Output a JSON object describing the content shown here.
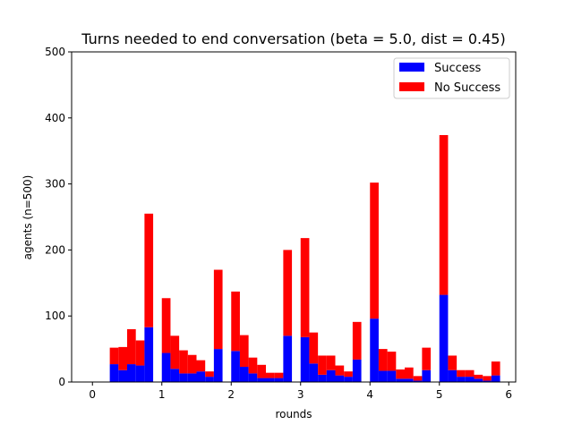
{
  "chart_data": {
    "type": "bar",
    "stacked": true,
    "title": "Turns needed to end conversation (beta = 5.0, dist = 0.45)",
    "xlabel": "rounds",
    "ylabel": "agents (n=500)",
    "xlim": [
      -0.3,
      6.1
    ],
    "ylim": [
      0,
      500
    ],
    "bin_width": 0.125,
    "xticks": [
      0,
      1,
      2,
      3,
      4,
      5,
      6
    ],
    "yticks": [
      0,
      100,
      200,
      300,
      400,
      500
    ],
    "legend_position": "top-right",
    "grid": false,
    "x": [
      0.25,
      0.375,
      0.5,
      0.625,
      0.75,
      1.0,
      1.125,
      1.25,
      1.375,
      1.5,
      1.625,
      1.75,
      2.0,
      2.125,
      2.25,
      2.375,
      2.5,
      2.625,
      2.75,
      3.0,
      3.125,
      3.25,
      3.375,
      3.5,
      3.625,
      3.75,
      4.0,
      4.125,
      4.25,
      4.375,
      4.5,
      4.625,
      4.75,
      5.0,
      5.125,
      5.25,
      5.375,
      5.5,
      5.625,
      5.75
    ],
    "series": [
      {
        "name": "Success",
        "color": "#0000ff",
        "values": [
          27,
          18,
          27,
          25,
          83,
          44,
          20,
          13,
          13,
          16,
          8,
          50,
          47,
          23,
          13,
          6,
          6,
          6,
          70,
          68,
          28,
          11,
          18,
          10,
          8,
          34,
          96,
          17,
          17,
          5,
          5,
          2,
          18,
          132,
          18,
          8,
          8,
          5,
          2,
          10
        ]
      },
      {
        "name": "No Success",
        "color": "#ff0000",
        "values": [
          25,
          35,
          53,
          38,
          172,
          83,
          50,
          35,
          28,
          17,
          8,
          120,
          90,
          48,
          24,
          20,
          8,
          8,
          130,
          150,
          47,
          29,
          22,
          15,
          8,
          57,
          206,
          33,
          29,
          14,
          17,
          7,
          34,
          242,
          22,
          10,
          10,
          6,
          7,
          21
        ]
      }
    ]
  }
}
